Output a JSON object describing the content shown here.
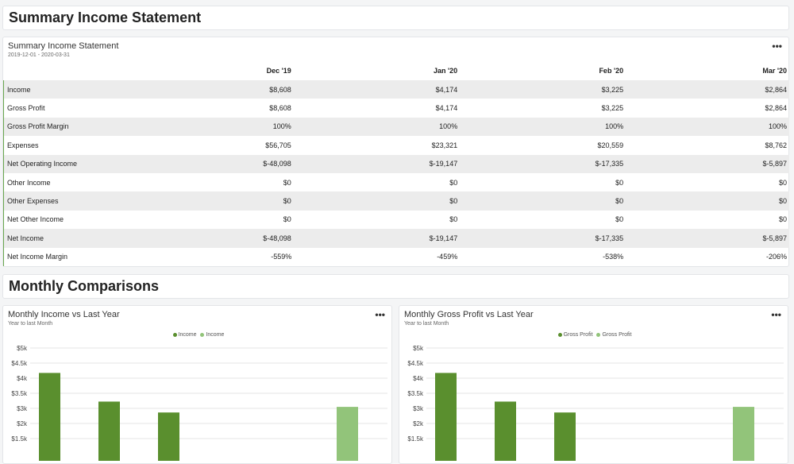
{
  "sections": {
    "summary_title": "Summary Income Statement",
    "comparisons_title": "Monthly Comparisons"
  },
  "statement": {
    "title": "Summary Income Statement",
    "date_range": "2019-12-01 - 2020-03-31",
    "menu": "•••",
    "columns": [
      "",
      "Dec '19",
      "Jan '20",
      "Feb '20",
      "Mar '20"
    ],
    "rows": [
      {
        "label": "Income",
        "values": [
          "$8,608",
          "$4,174",
          "$3,225",
          "$2,864"
        ]
      },
      {
        "label": "Gross Profit",
        "values": [
          "$8,608",
          "$4,174",
          "$3,225",
          "$2,864"
        ]
      },
      {
        "label": "Gross Profit Margin",
        "values": [
          "100%",
          "100%",
          "100%",
          "100%"
        ]
      },
      {
        "label": "Expenses",
        "values": [
          "$56,705",
          "$23,321",
          "$20,559",
          "$8,762"
        ]
      },
      {
        "label": "Net Operating Income",
        "values": [
          "$-48,098",
          "$-19,147",
          "$-17,335",
          "$-5,897"
        ]
      },
      {
        "label": "Other Income",
        "values": [
          "$0",
          "$0",
          "$0",
          "$0"
        ]
      },
      {
        "label": "Other Expenses",
        "values": [
          "$0",
          "$0",
          "$0",
          "$0"
        ]
      },
      {
        "label": "Net Other Income",
        "values": [
          "$0",
          "$0",
          "$0",
          "$0"
        ]
      },
      {
        "label": "Net Income",
        "values": [
          "$-48,098",
          "$-19,147",
          "$-17,335",
          "$-5,897"
        ]
      },
      {
        "label": "Net Income Margin",
        "values": [
          "-559%",
          "-459%",
          "-538%",
          "-206%"
        ]
      }
    ]
  },
  "charts": [
    {
      "title": "Monthly Income vs Last Year",
      "subtitle": "Year to last Month",
      "menu": "•••",
      "legend": [
        {
          "name": "Income",
          "color": "#5a8f2e"
        },
        {
          "name": "Income",
          "color": "#92c47a"
        }
      ]
    },
    {
      "title": "Monthly Gross Profit vs Last Year",
      "subtitle": "Year to last Month",
      "menu": "•••",
      "legend": [
        {
          "name": "Gross Profit",
          "color": "#5a8f2e"
        },
        {
          "name": "Gross Profit",
          "color": "#92c47a"
        }
      ]
    }
  ],
  "chart_data": [
    {
      "type": "bar",
      "title": "Monthly Income vs Last Year",
      "subtitle": "Year to last Month",
      "y_ticks": [
        "$5k",
        "$4.5k",
        "$4k",
        "$3.5k",
        "$3k",
        "$2k",
        "$1.5k"
      ],
      "ylim": [
        1000,
        5000
      ],
      "series": [
        {
          "name": "Income",
          "color": "#5a8f2e",
          "values": [
            4174,
            3225,
            2864,
            null,
            null,
            null
          ]
        },
        {
          "name": "Income",
          "color": "#92c47a",
          "values": [
            null,
            null,
            null,
            null,
            null,
            3050
          ]
        }
      ]
    },
    {
      "type": "bar",
      "title": "Monthly Gross Profit vs Last Year",
      "subtitle": "Year to last Month",
      "y_ticks": [
        "$5k",
        "$4.5k",
        "$4k",
        "$3.5k",
        "$3k",
        "$2k",
        "$1.5k"
      ],
      "ylim": [
        1000,
        5000
      ],
      "series": [
        {
          "name": "Gross Profit",
          "color": "#5a8f2e",
          "values": [
            4174,
            3225,
            2864,
            null,
            null,
            null
          ]
        },
        {
          "name": "Gross Profit",
          "color": "#92c47a",
          "values": [
            null,
            null,
            null,
            null,
            null,
            3050
          ]
        }
      ]
    }
  ]
}
